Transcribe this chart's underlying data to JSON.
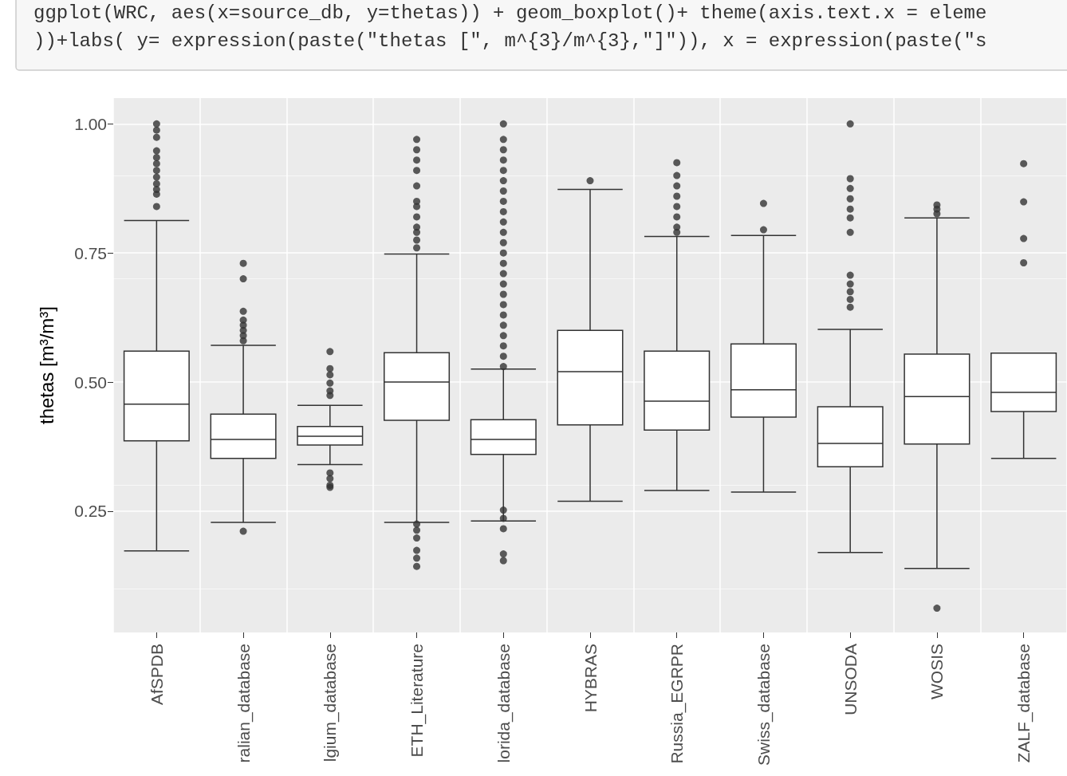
{
  "chart_data": {
    "type": "box",
    "annotations": [
      "ggplot(WRC, aes(x=source_db, y=thetas)) + geom_boxplot()+ theme(axis.text.x = eleme",
      "))+labs( y= expression(paste(\"thetas [\", m^{3}/m^{3},\"]\")), x = expression(paste(\"s"
    ],
    "ylabel": "thetas [m³/m³]",
    "categories": [
      "AfSPDB",
      "ralian_database",
      "lgium_database",
      "ETH_Literature",
      "lorida_database",
      "HYBRAS",
      "Russia_EGRPR",
      "Swiss_database",
      "UNSODA",
      "WOSIS",
      "ZALF_database"
    ],
    "boxes": [
      {
        "low": 0.173,
        "q1": 0.386,
        "median": 0.457,
        "q3": 0.56,
        "high": 0.813,
        "outliers": [
          0.84,
          0.864,
          0.873,
          0.884,
          0.897,
          0.91,
          0.923,
          0.935,
          0.948,
          0.974,
          0.988,
          1.0
        ]
      },
      {
        "low": 0.228,
        "q1": 0.352,
        "median": 0.389,
        "q3": 0.438,
        "high": 0.571,
        "outliers": [
          0.211,
          0.58,
          0.59,
          0.6,
          0.61,
          0.62,
          0.637,
          0.7,
          0.73
        ]
      },
      {
        "low": 0.34,
        "q1": 0.378,
        "median": 0.395,
        "q3": 0.414,
        "high": 0.455,
        "outliers": [
          0.296,
          0.3,
          0.313,
          0.324,
          0.474,
          0.483,
          0.498,
          0.514,
          0.526,
          0.559
        ]
      },
      {
        "low": 0.228,
        "q1": 0.426,
        "median": 0.5,
        "q3": 0.557,
        "high": 0.748,
        "outliers": [
          0.143,
          0.159,
          0.174,
          0.198,
          0.213,
          0.225,
          0.76,
          0.775,
          0.79,
          0.8,
          0.82,
          0.84,
          0.85,
          0.88,
          0.91,
          0.93,
          0.95,
          0.97
        ]
      },
      {
        "low": 0.231,
        "q1": 0.36,
        "median": 0.389,
        "q3": 0.427,
        "high": 0.525,
        "outliers": [
          0.154,
          0.167,
          0.216,
          0.236,
          0.252,
          0.53,
          0.55,
          0.57,
          0.59,
          0.61,
          0.63,
          0.65,
          0.67,
          0.69,
          0.71,
          0.73,
          0.75,
          0.77,
          0.79,
          0.81,
          0.83,
          0.85,
          0.87,
          0.89,
          0.91,
          0.93,
          0.95,
          0.97,
          1.0
        ]
      },
      {
        "low": 0.269,
        "q1": 0.417,
        "median": 0.52,
        "q3": 0.6,
        "high": 0.873,
        "outliers": [
          0.89
        ]
      },
      {
        "low": 0.29,
        "q1": 0.407,
        "median": 0.463,
        "q3": 0.56,
        "high": 0.782,
        "outliers": [
          0.79,
          0.8,
          0.82,
          0.84,
          0.86,
          0.88,
          0.9,
          0.925
        ]
      },
      {
        "low": 0.287,
        "q1": 0.432,
        "median": 0.485,
        "q3": 0.574,
        "high": 0.784,
        "outliers": [
          0.795,
          0.846
        ]
      },
      {
        "low": 0.17,
        "q1": 0.336,
        "median": 0.381,
        "q3": 0.452,
        "high": 0.602,
        "outliers": [
          0.645,
          0.66,
          0.675,
          0.69,
          0.707,
          0.79,
          0.818,
          0.835,
          0.855,
          0.875,
          0.894,
          1.0
        ]
      },
      {
        "low": 0.139,
        "q1": 0.38,
        "median": 0.472,
        "q3": 0.554,
        "high": 0.818,
        "outliers": [
          0.062,
          0.826,
          0.835,
          0.843
        ]
      },
      {
        "low": 0.352,
        "q1": 0.443,
        "median": 0.48,
        "q3": 0.556,
        "high": 0.556,
        "outliers": [
          0.731,
          0.778,
          0.849,
          0.923
        ]
      }
    ],
    "ylim": [
      0.015,
      1.05
    ],
    "yticks": [
      {
        "value": 0.25,
        "label": "0.25"
      },
      {
        "value": 0.5,
        "label": "0.50"
      },
      {
        "value": 0.75,
        "label": "0.75"
      },
      {
        "value": 1,
        "label": "1.00"
      }
    ],
    "grid": true
  }
}
